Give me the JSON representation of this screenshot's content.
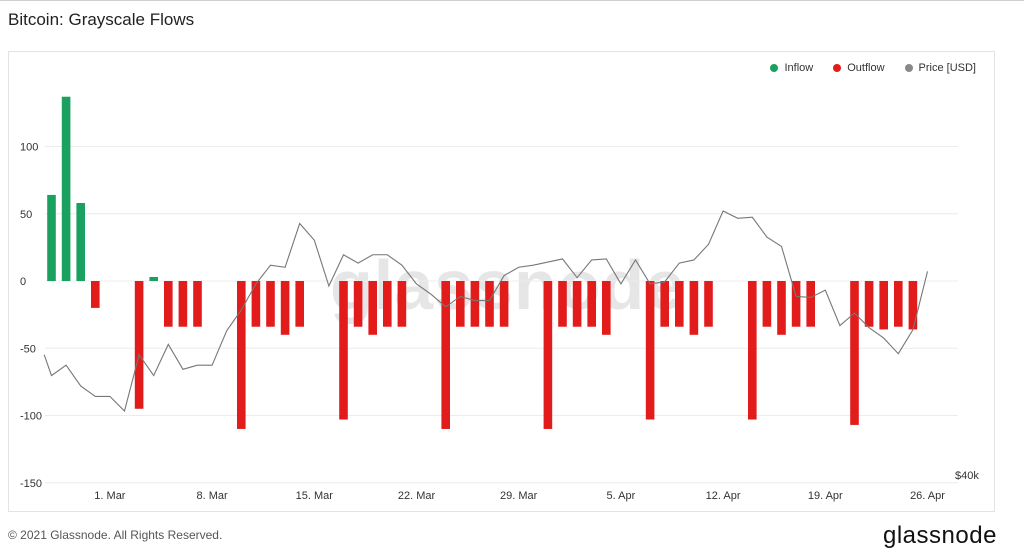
{
  "title": "Bitcoin: Grayscale Flows",
  "footer": "© 2021 Glassnode. All Rights Reserved.",
  "logo": "glassnode",
  "watermark": "glassnode",
  "right_axis_label": "$40k",
  "legend": [
    {
      "label": "Inflow",
      "color": "#1aa160"
    },
    {
      "label": "Outflow",
      "color": "#e21b1b"
    },
    {
      "label": "Price [USD]",
      "color": "#888888"
    }
  ],
  "chart_data": {
    "type": "bar",
    "title": "Bitcoin: Grayscale Flows",
    "y_ticks": [
      100,
      50,
      0,
      -50,
      -100,
      -150
    ],
    "ylim": [
      -150,
      150
    ],
    "x_ticks": [
      "1. Mar",
      "8. Mar",
      "15. Mar",
      "22. Mar",
      "29. Mar",
      "5. Apr",
      "12. Apr",
      "19. Apr",
      "26. Apr"
    ],
    "x_tick_day_index": [
      4,
      11,
      18,
      25,
      32,
      39,
      46,
      53,
      60
    ],
    "series": [
      {
        "name": "Inflow",
        "color": "#1aa160",
        "days": [
          0,
          1,
          2,
          7
        ],
        "values": [
          64,
          137,
          58,
          3
        ]
      },
      {
        "name": "Outflow",
        "color": "#e21b1b",
        "days": [
          3,
          6,
          8,
          9,
          10,
          13,
          14,
          15,
          16,
          17,
          20,
          21,
          22,
          23,
          24,
          27,
          28,
          29,
          30,
          31,
          34,
          35,
          36,
          37,
          38,
          41,
          42,
          43,
          44,
          45,
          48,
          49,
          50,
          51,
          52,
          55,
          56,
          57,
          58,
          59
        ],
        "values": [
          -20,
          -95,
          -34,
          -34,
          -34,
          -110,
          -34,
          -34,
          -40,
          -34,
          -103,
          -34,
          -40,
          -34,
          -34,
          -110,
          -34,
          -34,
          -34,
          -34,
          -110,
          -34,
          -34,
          -34,
          -40,
          -103,
          -34,
          -34,
          -40,
          -34,
          -103,
          -34,
          -40,
          -34,
          -34,
          -107,
          -34,
          -36,
          -34,
          -36
        ]
      },
      {
        "name": "Price [USD]",
        "color": "#888888",
        "axis": "right",
        "days": [
          -0.5,
          0,
          1,
          2,
          3,
          4,
          5,
          6,
          7,
          8,
          9,
          10,
          11,
          12,
          13,
          14,
          15,
          16,
          17,
          18,
          19,
          20,
          21,
          22,
          23,
          24,
          25,
          26,
          27,
          28,
          29,
          30,
          31,
          32,
          33,
          34,
          35,
          36,
          37,
          38,
          39,
          40,
          41,
          42,
          43,
          44,
          45,
          46,
          47,
          48,
          49,
          50,
          51,
          52,
          53,
          54,
          55,
          56,
          57,
          58,
          59,
          60
        ],
        "values": [
          47200,
          45200,
          46200,
          44200,
          43200,
          43200,
          41800,
          47200,
          45200,
          48200,
          45800,
          46200,
          46200,
          49500,
          51500,
          54000,
          55800,
          55600,
          59800,
          58200,
          53800,
          56800,
          56000,
          56800,
          56800,
          55800,
          54000,
          53000,
          51800,
          52800,
          52400,
          52400,
          54800,
          55600,
          55800,
          56100,
          56400,
          54600,
          56300,
          56400,
          54000,
          56300,
          54000,
          54200,
          56000,
          56300,
          57800,
          61000,
          60300,
          60400,
          58500,
          57600,
          52800,
          52700,
          53400,
          50000,
          51200,
          49800,
          48800,
          47300,
          49600,
          55200
        ]
      }
    ]
  }
}
